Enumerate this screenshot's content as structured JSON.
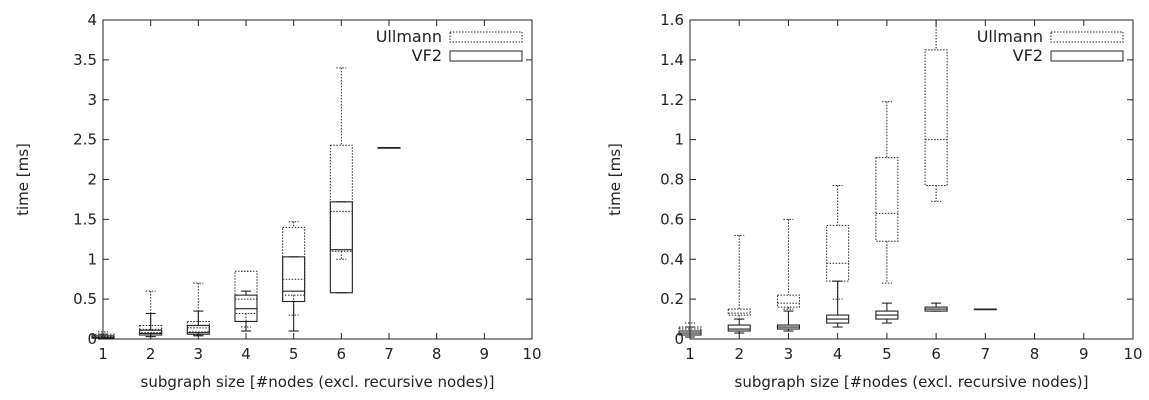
{
  "chart_data": [
    {
      "type": "box",
      "xlabel": "subgraph size [#nodes (excl. recursive nodes)]",
      "ylabel": "time [ms]",
      "xlim": [
        1,
        10
      ],
      "ylim": [
        0,
        4
      ],
      "x_ticks": [
        "1",
        "2",
        "3",
        "4",
        "5",
        "6",
        "7",
        "8",
        "9",
        "10"
      ],
      "y_ticks": [
        "0",
        "0.5",
        "1",
        "1.5",
        "2",
        "2.5",
        "3",
        "3.5",
        "4"
      ],
      "grid": false,
      "legend_position": "top-right",
      "series": [
        {
          "name": "Ullmann",
          "style": "dotted",
          "boxes": [
            {
              "x": 1,
              "min": 0.0,
              "q1": 0.01,
              "median": 0.03,
              "q3": 0.06,
              "max": 0.09
            },
            {
              "x": 2,
              "min": 0.03,
              "q1": 0.08,
              "median": 0.12,
              "q3": 0.17,
              "max": 0.6
            },
            {
              "x": 3,
              "min": 0.05,
              "q1": 0.09,
              "median": 0.14,
              "q3": 0.22,
              "max": 0.7
            },
            {
              "x": 4,
              "min": 0.15,
              "q1": 0.32,
              "median": 0.5,
              "q3": 0.85,
              "max": 0.85
            },
            {
              "x": 5,
              "min": 0.3,
              "q1": 0.55,
              "median": 0.75,
              "q3": 1.4,
              "max": 1.47
            },
            {
              "x": 6,
              "min": 1.0,
              "q1": 1.1,
              "median": 1.6,
              "q3": 2.43,
              "max": 3.4
            }
          ]
        },
        {
          "name": "VF2",
          "style": "solid",
          "boxes": [
            {
              "x": 1,
              "min": 0.0,
              "q1": 0.01,
              "median": 0.02,
              "q3": 0.04,
              "max": 0.06
            },
            {
              "x": 2,
              "min": 0.03,
              "q1": 0.05,
              "median": 0.07,
              "q3": 0.11,
              "max": 0.32
            },
            {
              "x": 3,
              "min": 0.04,
              "q1": 0.06,
              "median": 0.08,
              "q3": 0.17,
              "max": 0.35
            },
            {
              "x": 4,
              "min": 0.1,
              "q1": 0.22,
              "median": 0.38,
              "q3": 0.55,
              "max": 0.6
            },
            {
              "x": 5,
              "min": 0.1,
              "q1": 0.47,
              "median": 0.6,
              "q3": 1.03,
              "max": 1.03
            },
            {
              "x": 6,
              "min": 0.58,
              "q1": 0.58,
              "median": 1.12,
              "q3": 1.72,
              "max": 1.72
            },
            {
              "x": 7,
              "min": 2.4,
              "q1": 2.4,
              "median": 2.4,
              "q3": 2.4,
              "max": 2.4
            }
          ]
        }
      ]
    },
    {
      "type": "box",
      "xlabel": "subgraph size [#nodes (excl. recursive nodes)]",
      "ylabel": "time [ms]",
      "xlim": [
        1,
        10
      ],
      "ylim": [
        0,
        1.6
      ],
      "x_ticks": [
        "1",
        "2",
        "3",
        "4",
        "5",
        "6",
        "7",
        "8",
        "9",
        "10"
      ],
      "y_ticks": [
        "0",
        "0.2",
        "0.4",
        "0.6",
        "0.8",
        "1",
        "1.2",
        "1.4",
        "1.6"
      ],
      "grid": false,
      "legend_position": "top-right",
      "series": [
        {
          "name": "Ullmann",
          "style": "dotted",
          "boxes": [
            {
              "x": 1,
              "min": 0.02,
              "q1": 0.03,
              "median": 0.05,
              "q3": 0.06,
              "max": 0.08
            },
            {
              "x": 2,
              "min": 0.1,
              "q1": 0.12,
              "median": 0.13,
              "q3": 0.15,
              "max": 0.52
            },
            {
              "x": 3,
              "min": 0.15,
              "q1": 0.16,
              "median": 0.18,
              "q3": 0.22,
              "max": 0.6
            },
            {
              "x": 4,
              "min": 0.2,
              "q1": 0.29,
              "median": 0.38,
              "q3": 0.57,
              "max": 0.77
            },
            {
              "x": 5,
              "min": 0.28,
              "q1": 0.49,
              "median": 0.63,
              "q3": 0.91,
              "max": 1.19
            },
            {
              "x": 6,
              "min": 0.69,
              "q1": 0.77,
              "median": 1.0,
              "q3": 1.45,
              "max": 1.6
            }
          ]
        },
        {
          "name": "VF2",
          "style": "solid",
          "boxes": [
            {
              "x": 1,
              "min": 0.01,
              "q1": 0.02,
              "median": 0.03,
              "q3": 0.04,
              "max": 0.06
            },
            {
              "x": 2,
              "min": 0.03,
              "q1": 0.04,
              "median": 0.05,
              "q3": 0.07,
              "max": 0.1
            },
            {
              "x": 3,
              "min": 0.04,
              "q1": 0.05,
              "median": 0.06,
              "q3": 0.07,
              "max": 0.14
            },
            {
              "x": 4,
              "min": 0.06,
              "q1": 0.08,
              "median": 0.1,
              "q3": 0.12,
              "max": 0.29
            },
            {
              "x": 5,
              "min": 0.08,
              "q1": 0.1,
              "median": 0.12,
              "q3": 0.14,
              "max": 0.18
            },
            {
              "x": 6,
              "min": 0.14,
              "q1": 0.14,
              "median": 0.15,
              "q3": 0.16,
              "max": 0.18
            },
            {
              "x": 7,
              "min": 0.15,
              "q1": 0.15,
              "median": 0.15,
              "q3": 0.15,
              "max": 0.15
            }
          ]
        }
      ]
    }
  ]
}
